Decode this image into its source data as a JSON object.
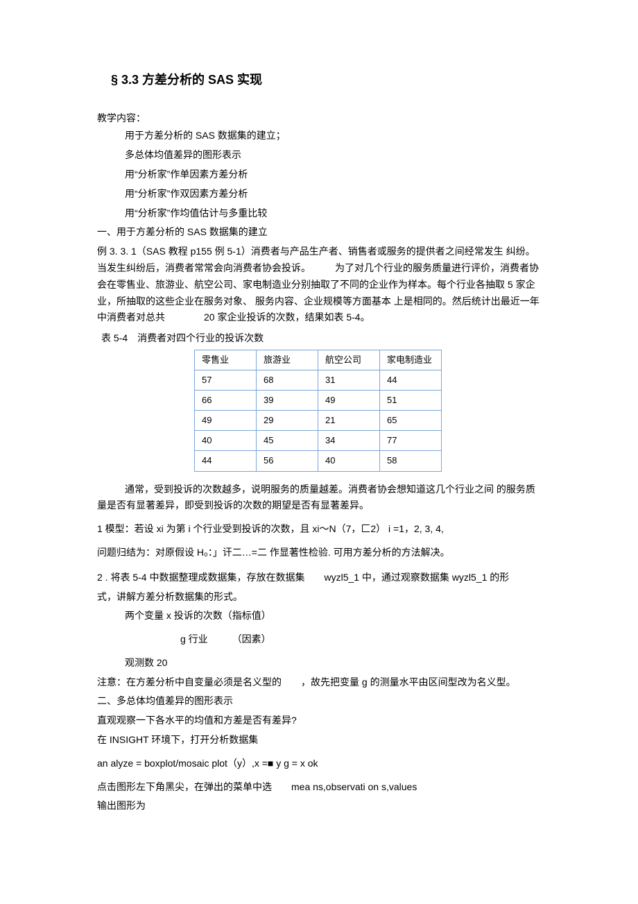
{
  "title": "§ 3.3 方差分析的 SAS 实现",
  "intro": {
    "label": "教学内容：",
    "items": [
      "用于方差分析的 SAS 数据集的建立；",
      "多总体均值差异的图形表示",
      "用“分析家”作单因素方差分析",
      "用“分析家”作双因素方差分析",
      "用“分析家”作均值估计与多重比较"
    ]
  },
  "sec1": {
    "heading": "一、用于方差分析的 SAS 数据集的建立",
    "example_label": "例 3. 3. 1（SAS 教程 p155 例 5-1）",
    "example_text": "消费者与产品生产者、销售者或服务的提供者之间经常发生 纠纷。当发生纠纷后，消费者常常会向消费者协会投诉。　　　为了对几个行业的服务质量进行评价，消费者协会在零售业、旅游业、航空公司、家电制造业分别抽取了不同的企业作为样本。每个行业各抽取 5 家企业，所抽取的这些企业在服务对象、 服务内容、企业规模等方面基本 上是相同的。然后统计出最近一年中消费者对总共　　　　20 家企业投诉的次数，结果如表 5-4。",
    "table_caption": "表 5-4　消费者对四个行业的投诉次数",
    "table": {
      "columns": [
        "零售业",
        "旅游业",
        "航空公司",
        "家电制造业"
      ],
      "rows": [
        [
          "57",
          "68",
          "31",
          "44"
        ],
        [
          "66",
          "39",
          "49",
          "51"
        ],
        [
          "49",
          "29",
          "21",
          "65"
        ],
        [
          "40",
          "45",
          "34",
          "77"
        ],
        [
          "44",
          "56",
          "40",
          "58"
        ]
      ],
      "border_color": "#7aa6d6",
      "cell_fontsize": 13
    },
    "after_table": "通常，受到投诉的次数越多，说明服务的质量越差。消费者协会想知道这几个行业之间 的服务质量是否有显著差异，即受到投诉的次数的期望是否有显著差异。",
    "model_line": "1 模型：若设 xi 为第 i 个行业受到投诉的次数，且 xi〜N（7，匚2） i =1，2,  3,  4,",
    "hypo_line": "问题归结为：对原假设 H₀：」讦二…=二 作显著性检验. 可用方差分析的方法解决。",
    "step2_a": "2 . 将表 5-4 中数据整理成数据集，存放在数据集　　wyzl5_1 中，通过观察数据集 wyzl5_1 的形",
    "step2_b": "式，讲解方差分析数据集的形式。",
    "vars_line1": "两个变量 x 投诉的次数（指标值）",
    "vars_line2": "g 行业　　　（因素）",
    "obs_line": "观测数 20",
    "note_line": "注意：在方差分析中自变量必须是名义型的　　，故先把变量 g 的测量水平由区间型改为名义型。"
  },
  "sec2": {
    "heading": "二、多总体均值差异的图形表示",
    "line1": "直观观察一下各水平的均值和方差是否有差异?",
    "line2": "在 INSIGHT 环境下，打开分析数据集",
    "code_line": "an alyze = boxplot/mosaic plot（y）,x =■ y g = x ok",
    "click_line": "点击图形左下角黑尖，在弹出的菜单中选　　mea ns,observati on s,values",
    "out_line": "输出图形为"
  },
  "colors": {
    "text": "#000000",
    "background": "#ffffff",
    "table_border": "#7aa6d6"
  },
  "typography": {
    "body_fontsize": 14,
    "title_fontsize": 18,
    "line_height": 1.7
  }
}
